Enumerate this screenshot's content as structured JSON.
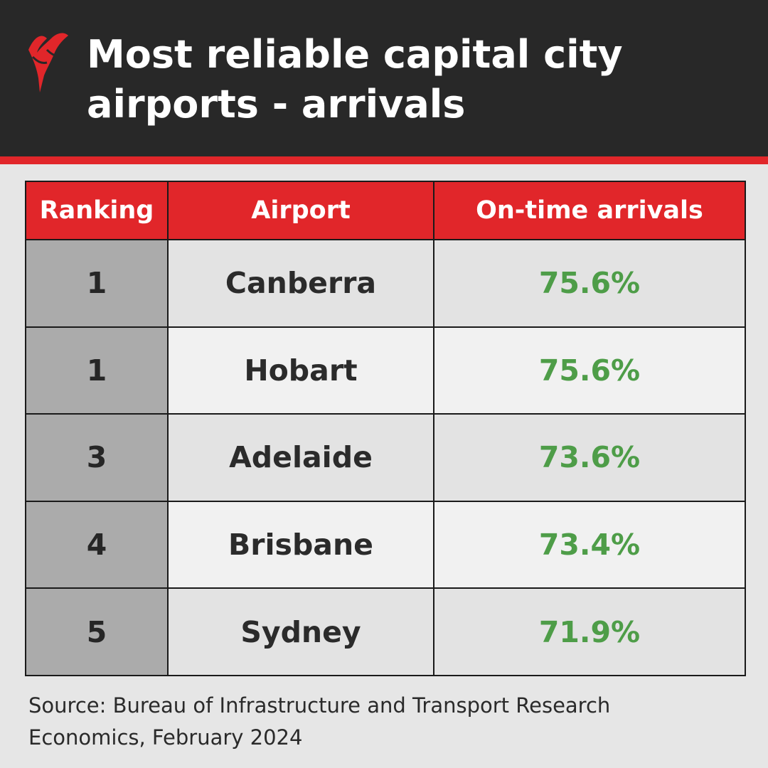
{
  "header": {
    "title_line_1": "Most reliable capital city",
    "title_line_2": "airports - arrivals",
    "logo": "sbs-logo-icon",
    "accent_color": "#e1262a"
  },
  "chart_data": {
    "type": "table",
    "columns": [
      "Ranking",
      "Airport",
      "On-time arrivals"
    ],
    "rows": [
      {
        "ranking": "1",
        "airport": "Canberra",
        "on_time": "75.6%"
      },
      {
        "ranking": "1",
        "airport": "Hobart",
        "on_time": "75.6%"
      },
      {
        "ranking": "3",
        "airport": "Adelaide",
        "on_time": "73.6%"
      },
      {
        "ranking": "4",
        "airport": "Brisbane",
        "on_time": "73.4%"
      },
      {
        "ranking": "5",
        "airport": "Sydney",
        "on_time": "71.9%"
      }
    ],
    "value_color": "#4e9d48"
  },
  "footer": {
    "source_line_1": "Source: Bureau of Infrastructure and Transport Research",
    "source_line_2": "Economics, February 2024"
  }
}
